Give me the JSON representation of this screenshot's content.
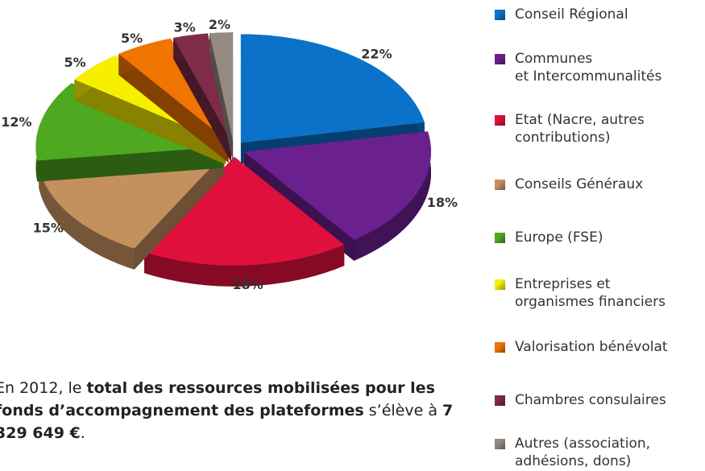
{
  "chart_data": {
    "type": "pie",
    "categories": [
      "Conseil Régional",
      "Communes\net Intercommunalités",
      "Etat (Nacre, autres\ncontributions)",
      "Conseils Généraux",
      "Europe (FSE)",
      "Entreprises et\norganismes financiers",
      "Valorisation bénévolat",
      "Chambres consulaires",
      "Autres (association,\nadhésions, dons)"
    ],
    "values": [
      22,
      18,
      18,
      15,
      12,
      5,
      5,
      3,
      2
    ],
    "value_labels": [
      "22%",
      "18%",
      "18%",
      "15%",
      "12%",
      "5%",
      "5%",
      "3%",
      "2%"
    ],
    "colors": [
      "#0a72c9",
      "#6b2090",
      "#e0103c",
      "#c4905e",
      "#4ea820",
      "#f6ef00",
      "#f07400",
      "#7e2c48",
      "#948a82"
    ],
    "legend": "right"
  },
  "note": [
    "En 2012, le ",
    "total des ressources mobilisées pour les fonds d’accompagnement des plateformes",
    " s’élève à ",
    "7 329 649 €",
    "."
  ]
}
